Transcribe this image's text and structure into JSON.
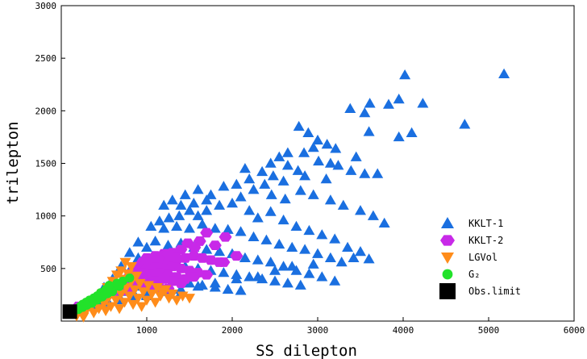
{
  "chart_data": {
    "type": "scatter",
    "xlabel": "SS dilepton",
    "ylabel": "trilepton",
    "xlim": [
      0,
      6000
    ],
    "ylim": [
      0,
      3000
    ],
    "x_ticks": [
      1000,
      2000,
      3000,
      4000,
      5000,
      6000
    ],
    "y_ticks": [
      500,
      1000,
      1500,
      2000,
      2500,
      3000
    ],
    "grid": false,
    "legend_position": "bottom-right",
    "series": [
      {
        "name": "KKLT-1",
        "marker": "triangle-up",
        "color": "#1a6fe0",
        "points": [
          [
            4020,
            2340
          ],
          [
            5180,
            2350
          ],
          [
            4720,
            1870
          ],
          [
            4230,
            2070
          ],
          [
            3950,
            2110
          ],
          [
            3830,
            2060
          ],
          [
            3610,
            2070
          ],
          [
            3380,
            2020
          ],
          [
            3550,
            1980
          ],
          [
            4100,
            1790
          ],
          [
            3950,
            1750
          ],
          [
            2780,
            1850
          ],
          [
            2890,
            1790
          ],
          [
            3000,
            1720
          ],
          [
            3110,
            1680
          ],
          [
            3210,
            1640
          ],
          [
            2840,
            1600
          ],
          [
            3010,
            1520
          ],
          [
            3240,
            1480
          ],
          [
            3390,
            1430
          ],
          [
            3550,
            1400
          ],
          [
            3700,
            1400
          ],
          [
            2550,
            1560
          ],
          [
            2650,
            1480
          ],
          [
            2770,
            1430
          ],
          [
            2480,
            1380
          ],
          [
            2600,
            1330
          ],
          [
            2850,
            1380
          ],
          [
            3100,
            1350
          ],
          [
            2380,
            1300
          ],
          [
            2250,
            1250
          ],
          [
            2460,
            1200
          ],
          [
            2620,
            1160
          ],
          [
            2800,
            1240
          ],
          [
            2950,
            1200
          ],
          [
            3150,
            1150
          ],
          [
            3300,
            1100
          ],
          [
            3500,
            1050
          ],
          [
            3650,
            1000
          ],
          [
            3780,
            930
          ],
          [
            2100,
            1180
          ],
          [
            2000,
            1120
          ],
          [
            1850,
            1100
          ],
          [
            1700,
            1050
          ],
          [
            1600,
            1000
          ],
          [
            1500,
            1050
          ],
          [
            1380,
            1000
          ],
          [
            1260,
            980
          ],
          [
            2200,
            1050
          ],
          [
            2300,
            980
          ],
          [
            2450,
            1040
          ],
          [
            2600,
            960
          ],
          [
            2750,
            900
          ],
          [
            2900,
            860
          ],
          [
            3050,
            820
          ],
          [
            3200,
            780
          ],
          [
            3350,
            700
          ],
          [
            3500,
            660
          ],
          [
            3600,
            590
          ],
          [
            3420,
            600
          ],
          [
            3280,
            560
          ],
          [
            1150,
            950
          ],
          [
            1050,
            900
          ],
          [
            1200,
            880
          ],
          [
            1350,
            900
          ],
          [
            1500,
            880
          ],
          [
            1650,
            920
          ],
          [
            1800,
            880
          ],
          [
            1950,
            870
          ],
          [
            2100,
            850
          ],
          [
            2250,
            800
          ],
          [
            2400,
            770
          ],
          [
            2550,
            730
          ],
          [
            2700,
            700
          ],
          [
            2850,
            680
          ],
          [
            3000,
            640
          ],
          [
            3150,
            600
          ],
          [
            2950,
            540
          ],
          [
            2700,
            520
          ],
          [
            2500,
            480
          ],
          [
            2300,
            420
          ],
          [
            2050,
            400
          ],
          [
            1800,
            360
          ],
          [
            1600,
            330
          ],
          [
            1400,
            300
          ],
          [
            1200,
            280
          ],
          [
            1000,
            250
          ],
          [
            850,
            230
          ],
          [
            700,
            200
          ],
          [
            550,
            180
          ],
          [
            450,
            160
          ],
          [
            350,
            140
          ],
          [
            250,
            120
          ],
          [
            150,
            100
          ],
          [
            900,
            750
          ],
          [
            1000,
            700
          ],
          [
            1100,
            760
          ],
          [
            1250,
            720
          ],
          [
            1400,
            740
          ],
          [
            1550,
            700
          ],
          [
            1700,
            680
          ],
          [
            1850,
            660
          ],
          [
            2000,
            640
          ],
          [
            2150,
            600
          ],
          [
            2300,
            580
          ],
          [
            2450,
            560
          ],
          [
            2600,
            520
          ],
          [
            2750,
            480
          ],
          [
            2900,
            450
          ],
          [
            3050,
            420
          ],
          [
            3200,
            380
          ],
          [
            800,
            650
          ],
          [
            900,
            600
          ],
          [
            1000,
            560
          ],
          [
            1150,
            580
          ],
          [
            1300,
            540
          ],
          [
            1450,
            520
          ],
          [
            1600,
            500
          ],
          [
            1750,
            480
          ],
          [
            1900,
            460
          ],
          [
            2050,
            440
          ],
          [
            2200,
            420
          ],
          [
            2350,
            400
          ],
          [
            2500,
            380
          ],
          [
            2650,
            360
          ],
          [
            2800,
            340
          ],
          [
            700,
            520
          ],
          [
            800,
            480
          ],
          [
            900,
            450
          ],
          [
            1050,
            430
          ],
          [
            1200,
            410
          ],
          [
            1350,
            380
          ],
          [
            1500,
            360
          ],
          [
            1650,
            340
          ],
          [
            1800,
            320
          ],
          [
            1950,
            300
          ],
          [
            2100,
            290
          ],
          [
            600,
            400
          ],
          [
            700,
            380
          ],
          [
            800,
            350
          ],
          [
            950,
            330
          ],
          [
            1100,
            310
          ],
          [
            1250,
            290
          ],
          [
            1400,
            270
          ],
          [
            500,
            320
          ],
          [
            600,
            300
          ],
          [
            720,
            280
          ],
          [
            850,
            260
          ],
          [
            1000,
            240
          ],
          [
            1200,
            1100
          ],
          [
            1300,
            1150
          ],
          [
            1400,
            1100
          ],
          [
            1550,
            1120
          ],
          [
            1700,
            1150
          ],
          [
            1450,
            1200
          ],
          [
            1600,
            1250
          ],
          [
            1750,
            1200
          ],
          [
            1900,
            1280
          ],
          [
            2050,
            1300
          ],
          [
            2200,
            1350
          ],
          [
            2350,
            1420
          ],
          [
            2150,
            1450
          ],
          [
            2450,
            1500
          ],
          [
            2650,
            1600
          ],
          [
            2950,
            1650
          ],
          [
            3150,
            1500
          ],
          [
            3450,
            1560
          ],
          [
            3600,
            1800
          ]
        ]
      },
      {
        "name": "KKLT-2",
        "marker": "hexagon",
        "color": "#c829e8",
        "points": [
          [
            1700,
            840
          ],
          [
            1920,
            800
          ],
          [
            1620,
            760
          ],
          [
            1480,
            740
          ],
          [
            1800,
            720
          ],
          [
            1560,
            700
          ],
          [
            1400,
            680
          ],
          [
            1300,
            650
          ],
          [
            1200,
            640
          ],
          [
            1100,
            620
          ],
          [
            1000,
            600
          ],
          [
            950,
            560
          ],
          [
            1050,
            560
          ],
          [
            1150,
            580
          ],
          [
            1250,
            560
          ],
          [
            1350,
            580
          ],
          [
            1450,
            600
          ],
          [
            1550,
            620
          ],
          [
            1650,
            600
          ],
          [
            1750,
            580
          ],
          [
            1850,
            560
          ],
          [
            900,
            520
          ],
          [
            1000,
            500
          ],
          [
            1100,
            520
          ],
          [
            1200,
            500
          ],
          [
            1300,
            520
          ],
          [
            1400,
            500
          ],
          [
            1500,
            480
          ],
          [
            1600,
            460
          ],
          [
            1700,
            440
          ],
          [
            850,
            480
          ],
          [
            950,
            460
          ],
          [
            1050,
            440
          ],
          [
            1150,
            460
          ],
          [
            1250,
            440
          ],
          [
            1350,
            420
          ],
          [
            1450,
            400
          ],
          [
            1550,
            420
          ],
          [
            800,
            430
          ],
          [
            900,
            410
          ],
          [
            1000,
            400
          ],
          [
            1100,
            380
          ],
          [
            1200,
            400
          ],
          [
            1300,
            380
          ],
          [
            1400,
            360
          ],
          [
            750,
            390
          ],
          [
            850,
            370
          ],
          [
            950,
            350
          ],
          [
            1050,
            340
          ],
          [
            1150,
            320
          ],
          [
            1250,
            310
          ],
          [
            700,
            340
          ],
          [
            800,
            320
          ],
          [
            650,
            300
          ],
          [
            750,
            290
          ],
          [
            600,
            260
          ],
          [
            500,
            230
          ],
          [
            400,
            200
          ],
          [
            300,
            170
          ],
          [
            200,
            140
          ],
          [
            150,
            110
          ],
          [
            1100,
            600
          ],
          [
            1250,
            640
          ],
          [
            1350,
            600
          ],
          [
            1900,
            560
          ],
          [
            2050,
            620
          ]
        ]
      },
      {
        "name": "LGVol",
        "marker": "triangle-down",
        "color": "#ff8c1a",
        "points": [
          [
            750,
            560
          ],
          [
            820,
            520
          ],
          [
            700,
            480
          ],
          [
            780,
            450
          ],
          [
            880,
            430
          ],
          [
            650,
            440
          ],
          [
            720,
            400
          ],
          [
            820,
            380
          ],
          [
            920,
            360
          ],
          [
            1020,
            340
          ],
          [
            1120,
            320
          ],
          [
            1220,
            300
          ],
          [
            600,
            380
          ],
          [
            680,
            350
          ],
          [
            760,
            320
          ],
          [
            860,
            300
          ],
          [
            960,
            280
          ],
          [
            1060,
            260
          ],
          [
            1160,
            240
          ],
          [
            540,
            320
          ],
          [
            620,
            290
          ],
          [
            700,
            260
          ],
          [
            800,
            240
          ],
          [
            900,
            220
          ],
          [
            1000,
            200
          ],
          [
            1100,
            180
          ],
          [
            480,
            260
          ],
          [
            560,
            230
          ],
          [
            640,
            200
          ],
          [
            740,
            180
          ],
          [
            840,
            160
          ],
          [
            940,
            140
          ],
          [
            420,
            200
          ],
          [
            500,
            170
          ],
          [
            580,
            140
          ],
          [
            680,
            120
          ],
          [
            360,
            150
          ],
          [
            440,
            120
          ],
          [
            520,
            100
          ],
          [
            300,
            110
          ],
          [
            380,
            80
          ],
          [
            240,
            70
          ],
          [
            180,
            50
          ],
          [
            260,
            40
          ],
          [
            1180,
            280
          ],
          [
            1260,
            220
          ],
          [
            1300,
            260
          ],
          [
            1350,
            200
          ],
          [
            1420,
            240
          ],
          [
            1500,
            220
          ]
        ]
      },
      {
        "name": "G₂",
        "marker": "circle",
        "color": "#22e22a",
        "points": [
          [
            800,
            410
          ],
          [
            720,
            380
          ],
          [
            650,
            360
          ],
          [
            600,
            320
          ],
          [
            520,
            300
          ],
          [
            460,
            270
          ],
          [
            420,
            240
          ],
          [
            380,
            220
          ],
          [
            330,
            200
          ],
          [
            290,
            180
          ],
          [
            250,
            160
          ],
          [
            220,
            140
          ],
          [
            190,
            120
          ],
          [
            160,
            100
          ],
          [
            140,
            90
          ],
          [
            600,
            280
          ],
          [
            540,
            260
          ],
          [
            480,
            230
          ],
          [
            420,
            200
          ],
          [
            360,
            170
          ],
          [
            300,
            150
          ],
          [
            250,
            130
          ],
          [
            200,
            110
          ],
          [
            680,
            330
          ],
          [
            560,
            340
          ]
        ]
      },
      {
        "name": "Obs.limit",
        "marker": "square",
        "color": "#000000",
        "points": [
          [
            100,
            90
          ]
        ]
      }
    ]
  }
}
